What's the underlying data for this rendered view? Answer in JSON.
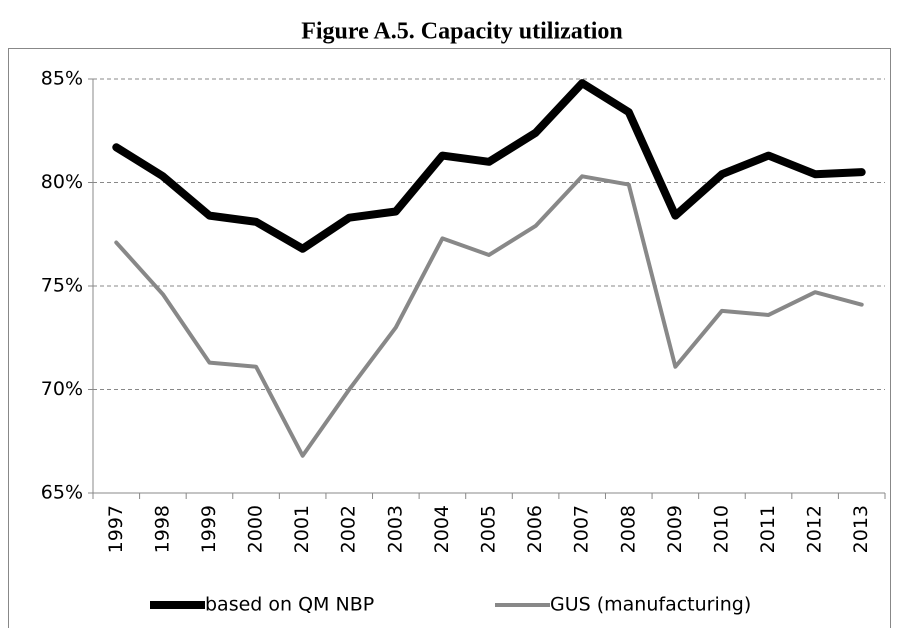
{
  "chart_data": {
    "type": "line",
    "title": "Figure A.5. Capacity utilization",
    "categories": [
      "1997",
      "1998",
      "1999",
      "2000",
      "2001",
      "2002",
      "2003",
      "2004",
      "2005",
      "2006",
      "2007",
      "2008",
      "2009",
      "2010",
      "2011",
      "2012",
      "2013"
    ],
    "series": [
      {
        "name": "based on QM NBP",
        "color": "#000000",
        "width": 8,
        "values": [
          81.7,
          80.3,
          78.4,
          78.1,
          76.8,
          78.3,
          78.6,
          81.3,
          81.0,
          82.4,
          84.8,
          83.4,
          78.4,
          80.4,
          81.3,
          80.4,
          80.5
        ]
      },
      {
        "name": "GUS (manufacturing)",
        "color": "#888888",
        "width": 4,
        "values": [
          77.1,
          74.6,
          71.3,
          71.1,
          66.8,
          70.0,
          73.0,
          77.3,
          76.5,
          77.9,
          80.3,
          79.9,
          71.1,
          73.8,
          73.6,
          74.7,
          74.1
        ]
      }
    ],
    "ylim": [
      65,
      85
    ],
    "yticks": [
      {
        "value": 65,
        "label": "65%"
      },
      {
        "value": 70,
        "label": "70%"
      },
      {
        "value": 75,
        "label": "75%"
      },
      {
        "value": 80,
        "label": "80%"
      },
      {
        "value": 85,
        "label": "85%"
      }
    ],
    "grid": true
  }
}
